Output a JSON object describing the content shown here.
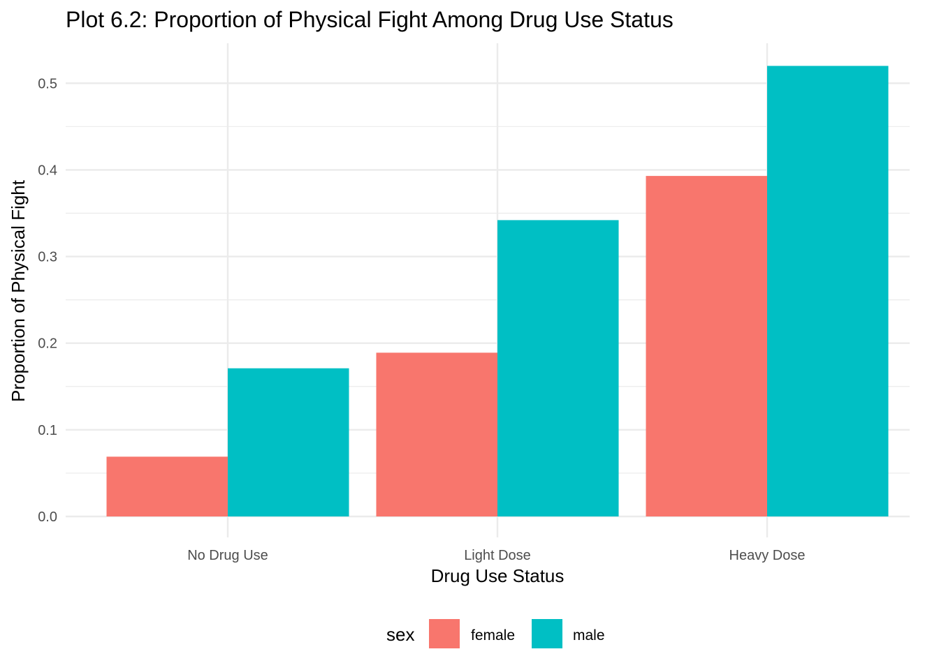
{
  "chart_data": {
    "type": "bar",
    "title": "Plot 6.2: Proportion of Physical Fight Among Drug Use Status",
    "xlabel": "Drug Use Status",
    "ylabel": "Proportion of Physical Fight",
    "categories": [
      "No Drug Use",
      "Light Dose",
      "Heavy Dose"
    ],
    "series": [
      {
        "name": "female",
        "color": "#F8766D",
        "values": [
          0.069,
          0.189,
          0.393
        ]
      },
      {
        "name": "male",
        "color": "#00BFC4",
        "values": [
          0.171,
          0.342,
          0.52
        ]
      }
    ],
    "ylim": [
      0,
      0.545
    ],
    "yticks": [
      "0.0",
      "0.1",
      "0.2",
      "0.3",
      "0.4",
      "0.5"
    ],
    "ytick_values": [
      0,
      0.1,
      0.2,
      0.3,
      0.4,
      0.5
    ],
    "grid": true,
    "legend": {
      "title": "sex",
      "position": "bottom"
    }
  }
}
